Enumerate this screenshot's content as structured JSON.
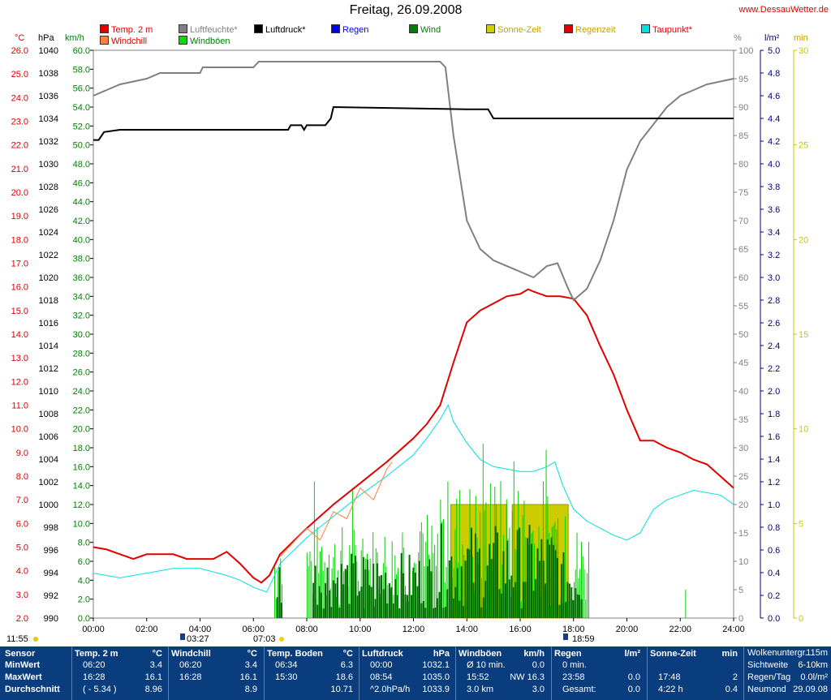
{
  "header": {
    "title": "Freitag, 26.09.2008",
    "site": "www.DessauWetter.de"
  },
  "legend": [
    {
      "label": "Temp. 2 m",
      "color": "#e00000",
      "text_color": "#e00000"
    },
    {
      "label": "Luftfeuchte*",
      "color": "#808080",
      "text_color": "#808080"
    },
    {
      "label": "Luftdruck*",
      "color": "#000000",
      "text_color": "#000000"
    },
    {
      "label": "Regen",
      "color": "#0000ff",
      "text_color": "#0000ff"
    },
    {
      "label": "Wind",
      "color": "#008000",
      "text_color": "#008000"
    },
    {
      "label": "Sonne-Zeit",
      "color": "#d0d000",
      "text_color": "#c8a000"
    },
    {
      "label": "Regenzeit",
      "color": "#e00000",
      "text_color": "#c8a000"
    },
    {
      "label": "Taupunkt*",
      "color": "#00e0e0",
      "text_color": "#e00000"
    },
    {
      "label": "Windchill",
      "color": "#ff8040",
      "text_color": "#e00000"
    },
    {
      "label": "Windböen",
      "color": "#00e000",
      "text_color": "#008000"
    }
  ],
  "axes": {
    "temp": {
      "unit": "°C",
      "color": "#e00000",
      "min": 2.0,
      "max": 26.0,
      "step": 1.0
    },
    "pressure": {
      "unit": "hPa",
      "color": "#000000",
      "min": 990,
      "max": 1040,
      "step": 2
    },
    "wind": {
      "unit": "km/h",
      "color": "#008000",
      "min": 0,
      "max": 60,
      "step": 2
    },
    "humidity": {
      "unit": "%",
      "color": "#808080",
      "min": 0,
      "max": 100,
      "step": 5
    },
    "rain": {
      "unit": "l/m²",
      "color": "#000080",
      "min": 0.0,
      "max": 5.0,
      "step": 0.2
    },
    "sun": {
      "unit": "min",
      "color": "#c8c800",
      "min": 0,
      "max": 30,
      "step": 5
    },
    "time_ticks": [
      "00:00",
      "02:00",
      "04:00",
      "06:00",
      "08:00",
      "10:00",
      "12:00",
      "14:00",
      "16:00",
      "18:00",
      "20:00",
      "22:00",
      "24:00"
    ]
  },
  "markers": {
    "moonset": "11:55",
    "moonrise": "03:27",
    "sunrise": "07:03",
    "sunset": "18:59"
  },
  "chart_data": {
    "type": "line",
    "x_unit": "hours",
    "series": [
      {
        "name": "Temp. 2 m",
        "axis": "temp",
        "color": "#e00000",
        "points": [
          [
            0,
            5.0
          ],
          [
            0.5,
            4.9
          ],
          [
            1,
            4.7
          ],
          [
            1.5,
            4.5
          ],
          [
            2,
            4.7
          ],
          [
            3,
            4.7
          ],
          [
            3.5,
            4.5
          ],
          [
            4,
            4.5
          ],
          [
            4.5,
            4.5
          ],
          [
            5,
            4.8
          ],
          [
            5.5,
            4.3
          ],
          [
            6,
            3.7
          ],
          [
            6.3,
            3.5
          ],
          [
            6.6,
            3.8
          ],
          [
            7,
            4.7
          ],
          [
            8,
            5.8
          ],
          [
            9,
            6.8
          ],
          [
            10,
            7.7
          ],
          [
            11,
            8.6
          ],
          [
            12,
            9.6
          ],
          [
            12.5,
            10.2
          ],
          [
            13,
            11.0
          ],
          [
            13.5,
            12.8
          ],
          [
            14,
            14.5
          ],
          [
            14.5,
            15.0
          ],
          [
            15,
            15.3
          ],
          [
            15.5,
            15.6
          ],
          [
            16,
            15.7
          ],
          [
            16.3,
            15.9
          ],
          [
            16.5,
            15.8
          ],
          [
            17,
            15.6
          ],
          [
            17.5,
            15.6
          ],
          [
            18,
            15.5
          ],
          [
            18.5,
            14.8
          ],
          [
            19,
            13.5
          ],
          [
            19.5,
            12.3
          ],
          [
            20,
            10.8
          ],
          [
            20.5,
            9.5
          ],
          [
            21,
            9.5
          ],
          [
            21.5,
            9.2
          ],
          [
            22,
            9.0
          ],
          [
            22.5,
            8.7
          ],
          [
            23,
            8.5
          ],
          [
            23.5,
            8.0
          ],
          [
            24,
            7.5
          ]
        ]
      },
      {
        "name": "Luftfeuchte*",
        "axis": "humidity",
        "color": "#808080",
        "points": [
          [
            0,
            92
          ],
          [
            0.5,
            93
          ],
          [
            1,
            94
          ],
          [
            2,
            95
          ],
          [
            2.5,
            96
          ],
          [
            4,
            96
          ],
          [
            4.1,
            97
          ],
          [
            6,
            97
          ],
          [
            6.2,
            98
          ],
          [
            13,
            98
          ],
          [
            13.2,
            97
          ],
          [
            13.5,
            85
          ],
          [
            14,
            70
          ],
          [
            14.5,
            65
          ],
          [
            15,
            63
          ],
          [
            16,
            61
          ],
          [
            16.5,
            60
          ],
          [
            17,
            62
          ],
          [
            17.4,
            62.5
          ],
          [
            17.8,
            58
          ],
          [
            18,
            56
          ],
          [
            18.5,
            58
          ],
          [
            19,
            63
          ],
          [
            19.5,
            70
          ],
          [
            20,
            79
          ],
          [
            20.5,
            84
          ],
          [
            21,
            87
          ],
          [
            21.5,
            90
          ],
          [
            22,
            92
          ],
          [
            22.5,
            93
          ],
          [
            23,
            94
          ],
          [
            24,
            95
          ]
        ]
      },
      {
        "name": "Luftdruck*",
        "axis": "pressure",
        "color": "#000000",
        "points": [
          [
            0,
            1032.1
          ],
          [
            0.2,
            1032.1
          ],
          [
            0.4,
            1032.8
          ],
          [
            1,
            1033.0
          ],
          [
            7,
            1033.0
          ],
          [
            7.3,
            1033.0
          ],
          [
            7.4,
            1033.4
          ],
          [
            7.8,
            1033.4
          ],
          [
            7.9,
            1033.0
          ],
          [
            8,
            1033.4
          ],
          [
            8.7,
            1033.4
          ],
          [
            8.9,
            1034.0
          ],
          [
            9,
            1035.0
          ],
          [
            14,
            1034.8
          ],
          [
            14.8,
            1034.8
          ],
          [
            15,
            1034.0
          ],
          [
            16,
            1034.0
          ],
          [
            24,
            1034.0
          ]
        ]
      },
      {
        "name": "Taupunkt*",
        "axis": "temp",
        "color": "#00e0e0",
        "points": [
          [
            0,
            3.9
          ],
          [
            1,
            3.7
          ],
          [
            2,
            3.9
          ],
          [
            3,
            4.1
          ],
          [
            4,
            4.1
          ],
          [
            5,
            3.8
          ],
          [
            5.5,
            3.6
          ],
          [
            6,
            3.3
          ],
          [
            6.5,
            3.1
          ],
          [
            7,
            4.3
          ],
          [
            8,
            5.4
          ],
          [
            9,
            6.3
          ],
          [
            10,
            7.2
          ],
          [
            11,
            8.0
          ],
          [
            12,
            8.9
          ],
          [
            12.5,
            9.6
          ],
          [
            13,
            10.4
          ],
          [
            13.3,
            11.0
          ],
          [
            13.5,
            10.3
          ],
          [
            14,
            9.4
          ],
          [
            14.5,
            8.7
          ],
          [
            15,
            8.4
          ],
          [
            16,
            8.2
          ],
          [
            16.5,
            8.2
          ],
          [
            17,
            8.4
          ],
          [
            17.3,
            8.6
          ],
          [
            17.6,
            7.6
          ],
          [
            18,
            6.6
          ],
          [
            18.5,
            6.1
          ],
          [
            19,
            5.8
          ],
          [
            19.5,
            5.5
          ],
          [
            20,
            5.3
          ],
          [
            20.5,
            5.6
          ],
          [
            21,
            6.6
          ],
          [
            21.5,
            7.0
          ],
          [
            22,
            7.2
          ],
          [
            22.5,
            7.4
          ],
          [
            23,
            7.3
          ],
          [
            23.5,
            7.2
          ],
          [
            24,
            6.8
          ]
        ]
      },
      {
        "name": "Windchill",
        "axis": "temp",
        "color": "#ff8040",
        "points": [
          [
            7,
            4.6
          ],
          [
            8,
            5.8
          ],
          [
            8.5,
            5.3
          ],
          [
            9,
            6.5
          ],
          [
            9.5,
            6.2
          ],
          [
            10,
            7.5
          ],
          [
            10.5,
            7.0
          ],
          [
            11,
            8.3
          ],
          [
            11.2,
            8.6
          ]
        ]
      }
    ],
    "sun_blocks": [
      {
        "from": 13.4,
        "to": 15.5
      },
      {
        "from": 15.7,
        "to": 17.8
      }
    ],
    "sun_level_min": 6
  },
  "footer": {
    "sensor": {
      "head": "Sensor",
      "rows": [
        "MinWert",
        "MaxWert",
        "Durchschnitt"
      ]
    },
    "temp": {
      "head": "Temp. 2 m",
      "unit": "°C",
      "rows": [
        [
          "06:20",
          "3.4"
        ],
        [
          "16:28",
          "16.1"
        ],
        [
          "( - 5.34 )",
          "8.96"
        ]
      ]
    },
    "windchill": {
      "head": "Windchill",
      "unit": "°C",
      "rows": [
        [
          "06:20",
          "3.4"
        ],
        [
          "16:28",
          "16.1"
        ],
        [
          "",
          "8.9"
        ]
      ]
    },
    "boden": {
      "head": "Temp. Boden",
      "unit": "°C",
      "rows": [
        [
          "06:34",
          "6.3"
        ],
        [
          "15:30",
          "18.6"
        ],
        [
          "",
          "10.71"
        ]
      ]
    },
    "druck": {
      "head": "Luftdruck",
      "unit": "hPa",
      "rows": [
        [
          "00:00",
          "1032.1"
        ],
        [
          "08:54",
          "1035.0"
        ],
        [
          "^2.0hPa/h",
          "1033.9"
        ]
      ]
    },
    "boeen": {
      "head": "Windböen",
      "unit": "km/h",
      "rows": [
        [
          "Ø 10 min.",
          "0.0"
        ],
        [
          "15:52",
          "NW 16.3"
        ],
        [
          "3.0 km",
          "3.0"
        ]
      ]
    },
    "regen": {
      "head": "Regen",
      "unit": "l/m²",
      "rows": [
        [
          "0 min.",
          ""
        ],
        [
          "23:58",
          "0.0"
        ],
        [
          "Gesamt:",
          "0.0"
        ]
      ]
    },
    "sonne": {
      "head": "Sonne-Zeit",
      "unit": "min",
      "rows": [
        [
          "",
          ""
        ],
        [
          "17:48",
          "2"
        ],
        [
          "4:22 h",
          "0.4"
        ]
      ]
    },
    "extra": {
      "rows": [
        [
          "Wolkenuntergr.",
          "115m"
        ],
        [
          "Sichtweite",
          "6-10km"
        ],
        [
          "Regen/Tag",
          "0.0l/m²"
        ],
        [
          "Neumond",
          "29.09.08"
        ]
      ]
    }
  }
}
